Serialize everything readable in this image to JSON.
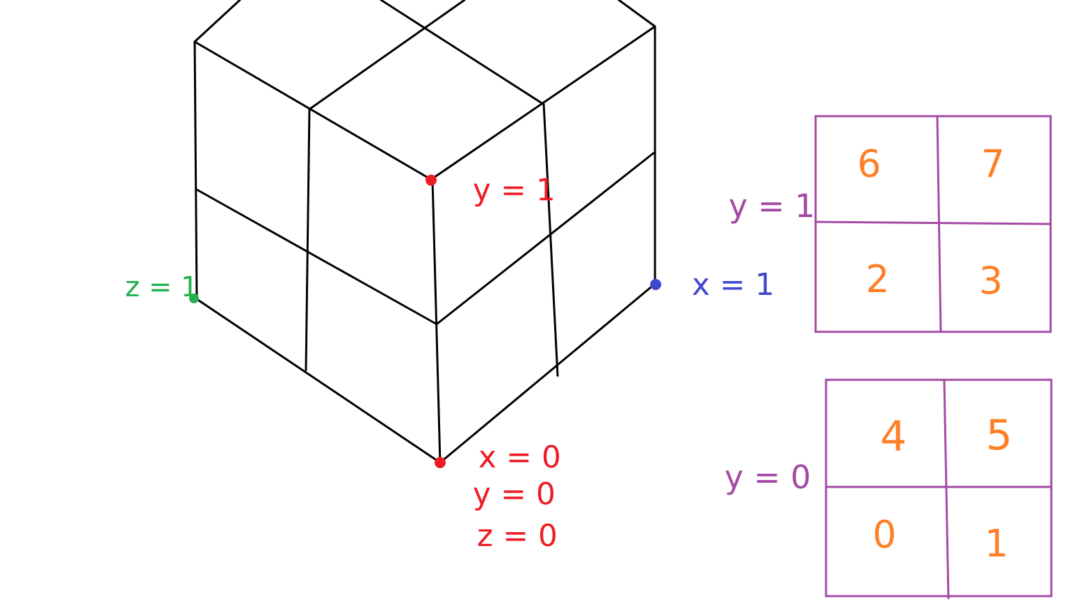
{
  "colors": {
    "cube": "#000000",
    "origin": "#ee1c24",
    "z_axis": "#22b14c",
    "x_axis": "#3f48cc",
    "grid": "#a349a4",
    "numbers": "#ff7f27"
  },
  "cube_labels": {
    "top_corner": "y = 1",
    "z_corner": "z = 1",
    "x_corner": "x = 1",
    "origin_x": "x = 0",
    "origin_y": "y = 0",
    "origin_z": "z = 0"
  },
  "layers": [
    {
      "label": "y = 1",
      "cells": [
        "6",
        "7",
        "2",
        "3"
      ]
    },
    {
      "label": "y = 0",
      "cells": [
        "4",
        "5",
        "0",
        "1"
      ]
    }
  ]
}
